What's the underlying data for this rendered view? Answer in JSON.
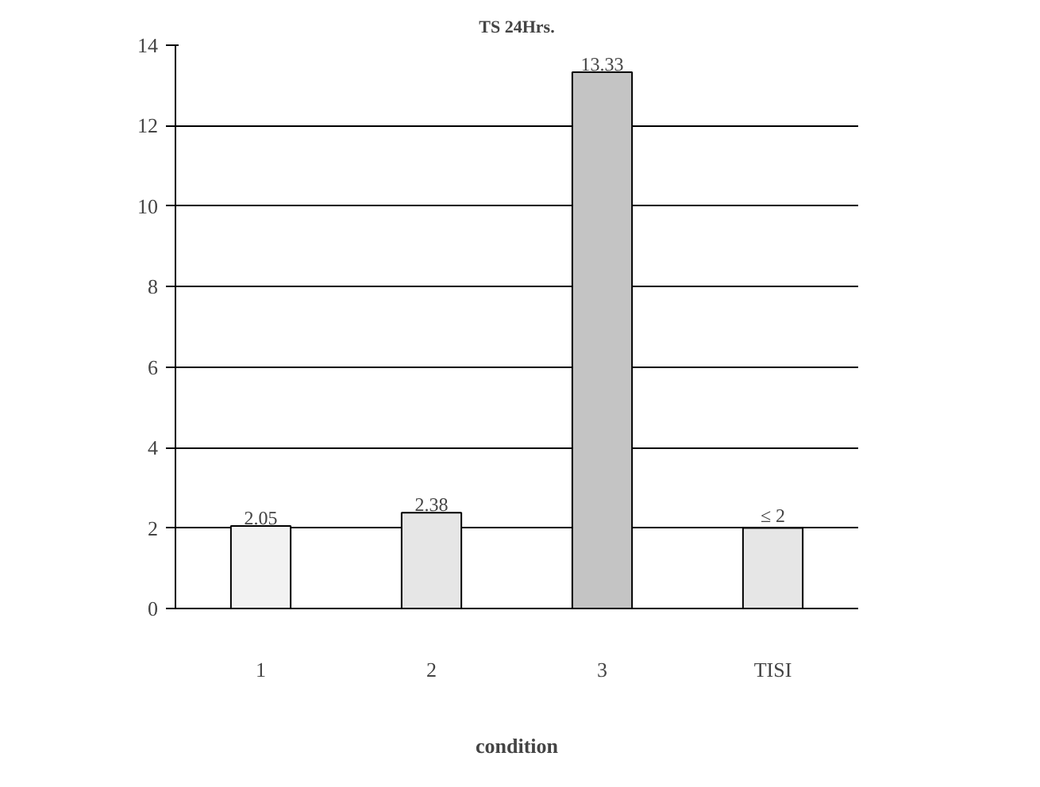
{
  "chart_data": {
    "type": "bar",
    "title": "TS 24Hrs.",
    "xlabel": "condition",
    "categories": [
      "1",
      "2",
      "3",
      "TISI"
    ],
    "values": [
      2.05,
      2.38,
      13.33,
      2
    ],
    "colors": [
      "#f2f2f2",
      "#e6e6e6",
      "#c4c4c4",
      "#e6e6e6"
    ],
    "value_labels": [
      "2.05",
      "2.38",
      "13.33",
      "≤ 2"
    ],
    "ylim": [
      0,
      14
    ],
    "yticks": [
      0,
      2,
      4,
      6,
      8,
      10,
      12,
      14
    ],
    "grid": "y"
  }
}
